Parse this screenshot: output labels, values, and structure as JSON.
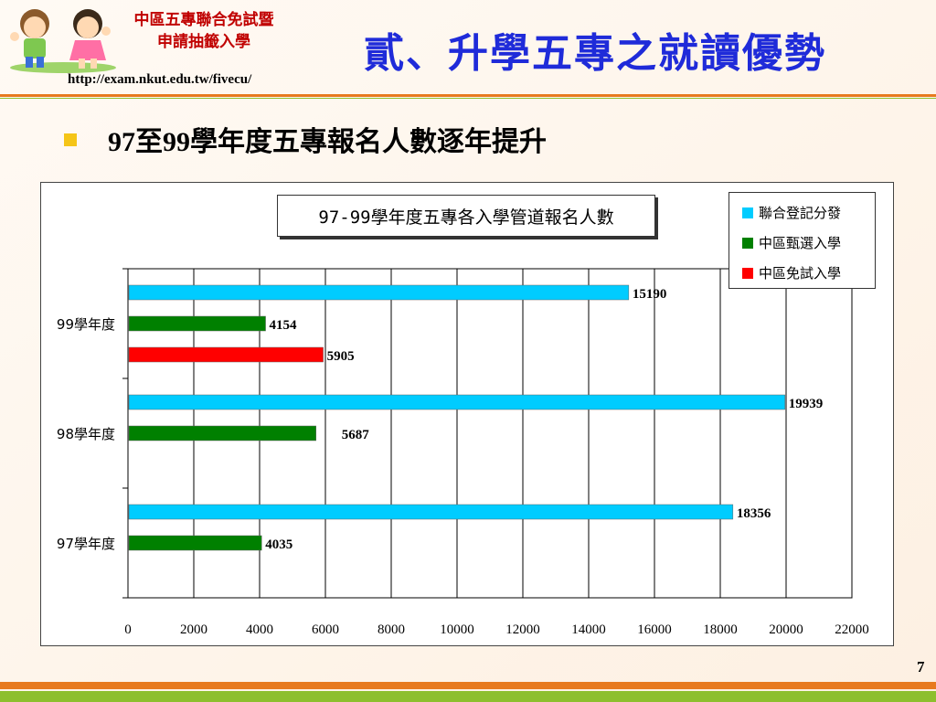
{
  "header": {
    "logo_line1": "中區五專聯合免試暨",
    "logo_line2": "申請抽籤入學",
    "url": "http://exam.nkut.edu.tw/fivecu/",
    "title": "貳、升學五專之就讀優勢"
  },
  "slide": {
    "subtitle": "97至99學年度五專報名人數逐年提升",
    "page_number": "7"
  },
  "colors": {
    "accent_orange": "#e77a1f",
    "accent_green": "#8dbf2e",
    "title_blue": "#1f2bd9",
    "bullet_yellow": "#f5c518"
  },
  "chart_data": {
    "type": "bar",
    "orientation": "horizontal",
    "title": "97-99學年度五專各入學管道報名人數",
    "categories": [
      "99學年度",
      "98學年度",
      "97學年度"
    ],
    "series": [
      {
        "name": "聯合登記分發",
        "color": "#00ccff",
        "values": [
          15190,
          19939,
          18356
        ]
      },
      {
        "name": "中區甄選入學",
        "color": "#008000",
        "values": [
          4154,
          5687,
          4035
        ]
      },
      {
        "name": "中區免試入學",
        "color": "#ff0000",
        "values": [
          5905,
          null,
          null
        ]
      }
    ],
    "xlim": [
      0,
      22000
    ],
    "xticks": [
      0,
      2000,
      4000,
      6000,
      8000,
      10000,
      12000,
      14000,
      16000,
      18000,
      20000,
      22000
    ],
    "grid": true,
    "legend": "top-right"
  }
}
